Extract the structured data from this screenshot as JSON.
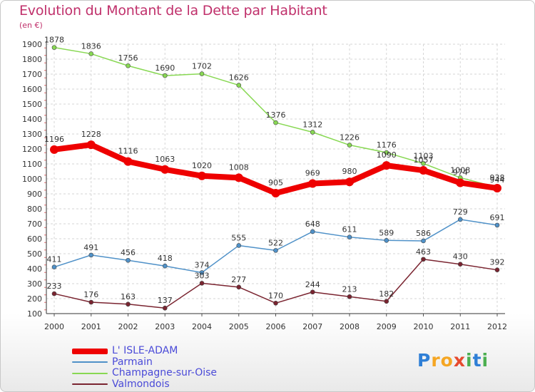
{
  "title": "Evolution du Montant de la Dette par Habitant",
  "unit": "(en €)",
  "logo": {
    "letters": [
      "P",
      "r",
      "o",
      "x",
      "i",
      "t",
      "i"
    ],
    "colors": [
      "#2f7fd6",
      "#f5a623",
      "#f5a623",
      "#e64a2e",
      "#4caf50",
      "#2f7fd6",
      "#4caf50"
    ]
  },
  "chart_data": {
    "type": "line",
    "title": "Evolution du Montant de la Dette par Habitant",
    "ylabel": "(en €)",
    "xlabel": "",
    "x": [
      "2000",
      "2001",
      "2002",
      "2003",
      "2004",
      "2005",
      "2006",
      "2007",
      "2008",
      "2009",
      "2010",
      "2011",
      "2012"
    ],
    "ylim": [
      100,
      1900
    ],
    "yticks": [
      100,
      200,
      300,
      400,
      500,
      600,
      700,
      800,
      900,
      1000,
      1100,
      1200,
      1300,
      1400,
      1500,
      1600,
      1700,
      1800,
      1900
    ],
    "grid": true,
    "legend": "bottom-left",
    "series": [
      {
        "name": "L' ISLE-ADAM",
        "color": "#ee0000",
        "values": [
          1196,
          1228,
          1116,
          1063,
          1020,
          1008,
          905,
          969,
          980,
          1090,
          1057,
          974,
          938
        ]
      },
      {
        "name": "Parmain",
        "color": "#4f91c8",
        "values": [
          411,
          491,
          456,
          418,
          374,
          555,
          522,
          648,
          611,
          589,
          586,
          729,
          691
        ]
      },
      {
        "name": "Champagne-sur-Oise",
        "color": "#88d853",
        "values": [
          1878,
          1836,
          1756,
          1690,
          1702,
          1626,
          1376,
          1312,
          1226,
          1176,
          1103,
          1008,
          944
        ]
      },
      {
        "name": "Valmondois",
        "color": "#7a2430",
        "values": [
          233,
          176,
          163,
          137,
          303,
          277,
          170,
          244,
          213,
          182,
          463,
          430,
          392
        ]
      }
    ]
  }
}
